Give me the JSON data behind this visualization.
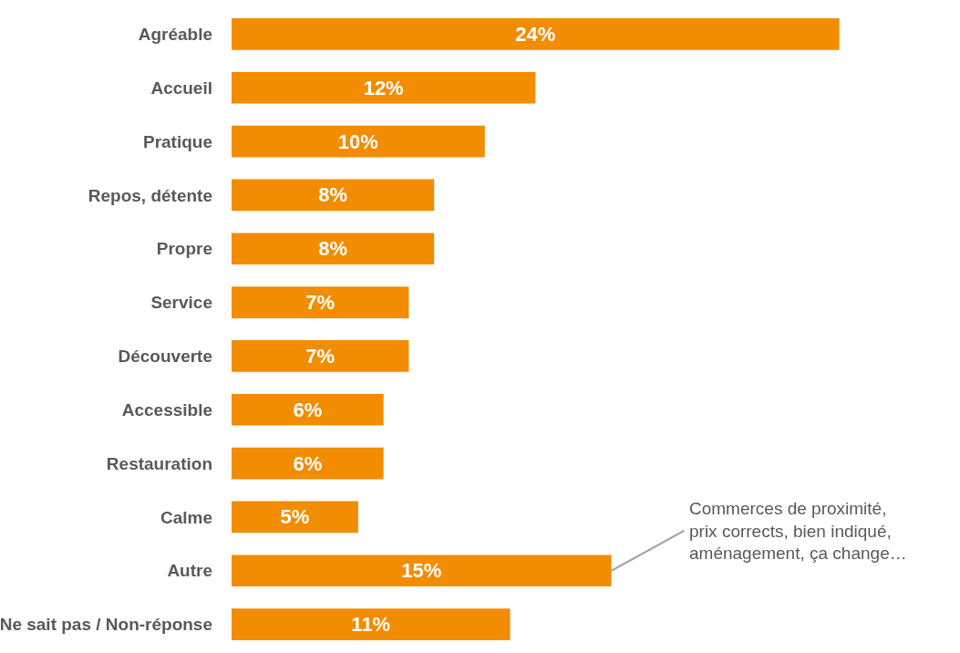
{
  "chart_data": {
    "type": "bar",
    "orientation": "horizontal",
    "categories": [
      "Agréable",
      "Accueil",
      "Pratique",
      "Repos, détente",
      "Propre",
      "Service",
      "Découverte",
      "Accessible",
      "Restauration",
      "Calme",
      "Autre",
      "Ne sait pas / Non-réponse"
    ],
    "values": [
      24,
      12,
      10,
      8,
      8,
      7,
      7,
      6,
      6,
      5,
      15,
      11
    ],
    "value_labels": [
      "24%",
      "12%",
      "10%",
      "8%",
      "8%",
      "7%",
      "7%",
      "6%",
      "6%",
      "5%",
      "15%",
      "11%"
    ],
    "color": "#f28c00",
    "annotations": [
      {
        "text": "Commerces de proximité,\nprix corrects, bien indiqué,\naménagement, ça change…",
        "x": 15,
        "y": "Autre"
      }
    ],
    "legend": false
  }
}
